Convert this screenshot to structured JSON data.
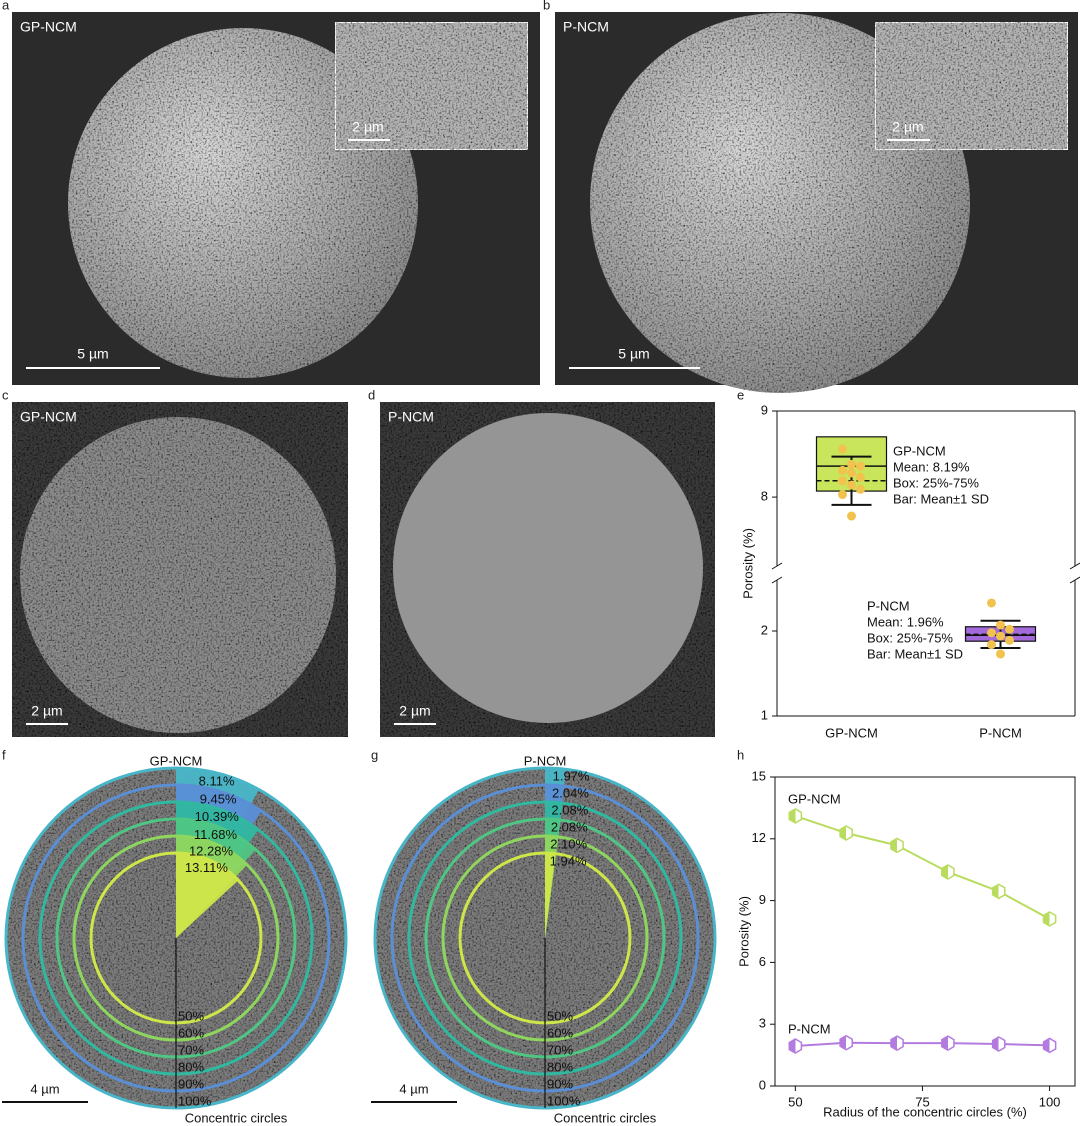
{
  "panels": {
    "a": {
      "letter": "a",
      "label": "GP-NCM",
      "inset_scale": "2 µm",
      "scale": "5 µm"
    },
    "b": {
      "letter": "b",
      "label": "P-NCM",
      "inset_scale": "2 µm",
      "scale": "5 µm"
    },
    "c": {
      "letter": "c",
      "label": "GP-NCM",
      "scale": "2 µm"
    },
    "d": {
      "letter": "d",
      "label": "P-NCM",
      "scale": "2 µm"
    }
  },
  "chart_data": [
    {
      "type": "box",
      "letter": "e",
      "categories": [
        "GP-NCM",
        "P-NCM"
      ],
      "y_label": "Porosity (%)",
      "ylim": [
        1,
        9
      ],
      "y_break": [
        2.6,
        7.2
      ],
      "yticks": [
        1,
        2,
        8,
        9
      ],
      "series": [
        {
          "color": "#c8e55c",
          "point_color": "#f2c24f",
          "q1": 8.07,
          "median": 8.36,
          "q3": 8.7,
          "mean": 8.19,
          "sd": 0.28,
          "points": [
            8.56,
            8.38,
            8.36,
            8.31,
            8.28,
            8.23,
            8.19,
            8.14,
            8.09,
            8.03,
            7.78
          ]
        },
        {
          "color": "#a26ada",
          "point_color": "#f2c24f",
          "q1": 1.88,
          "median": 1.95,
          "q3": 2.05,
          "mean": 1.96,
          "sd": 0.16,
          "points": [
            2.33,
            2.07,
            2.02,
            1.98,
            1.94,
            1.89,
            1.84,
            1.73
          ]
        }
      ],
      "annotations": [
        [
          "GP-NCM",
          "Mean: 8.19%",
          "Box: 25%-75%",
          "Bar: Mean±1 SD"
        ],
        [
          "P-NCM",
          "Mean: 1.96%",
          "Box: 25%-75%",
          "Bar: Mean±1 SD"
        ]
      ]
    },
    {
      "type": "radial",
      "letter": "f",
      "title": "GP-NCM",
      "categories": [
        "50%",
        "60%",
        "70%",
        "80%",
        "90%",
        "100%"
      ],
      "values": [
        13.11,
        12.28,
        11.68,
        10.39,
        9.45,
        8.11
      ],
      "value_labels": [
        "13.11%",
        "12.28%",
        "11.68%",
        "10.39%",
        "9.45%",
        "8.11%"
      ],
      "colors": [
        "#cfe649",
        "#8fd65e",
        "#4fc683",
        "#30b8a0",
        "#5a8fd6",
        "#48b6c8"
      ],
      "x_label": "Concentric circles",
      "scale": "4 µm"
    },
    {
      "type": "radial",
      "letter": "g",
      "title": "P-NCM",
      "categories": [
        "50%",
        "60%",
        "70%",
        "80%",
        "90%",
        "100%"
      ],
      "values": [
        1.94,
        2.1,
        2.08,
        2.08,
        2.04,
        1.97
      ],
      "value_labels": [
        "1.94%",
        "2.10%",
        "2.08%",
        "2.08%",
        "2.04%",
        "1.97%"
      ],
      "colors": [
        "#cfe649",
        "#8fd65e",
        "#4fc683",
        "#30b8a0",
        "#5a8fd6",
        "#48b6c8"
      ],
      "x_label": "Concentric circles",
      "scale": "4 µm"
    },
    {
      "type": "line",
      "letter": "h",
      "x": [
        50,
        60,
        70,
        80,
        90,
        100
      ],
      "xlim": [
        46,
        105
      ],
      "xticks": [
        50,
        75,
        100
      ],
      "ylim": [
        0,
        15
      ],
      "yticks": [
        0,
        3,
        6,
        9,
        12,
        15
      ],
      "x_label": "Radius of the concentric circles (%)",
      "y_label": "Porosity (%)",
      "series": [
        {
          "name": "GP-NCM",
          "color": "#b9dc5e",
          "values": [
            13.11,
            12.28,
            11.68,
            10.39,
            9.45,
            8.11
          ]
        },
        {
          "name": "P-NCM",
          "color": "#b37be0",
          "values": [
            1.94,
            2.1,
            2.08,
            2.08,
            2.04,
            1.97
          ]
        }
      ]
    }
  ]
}
